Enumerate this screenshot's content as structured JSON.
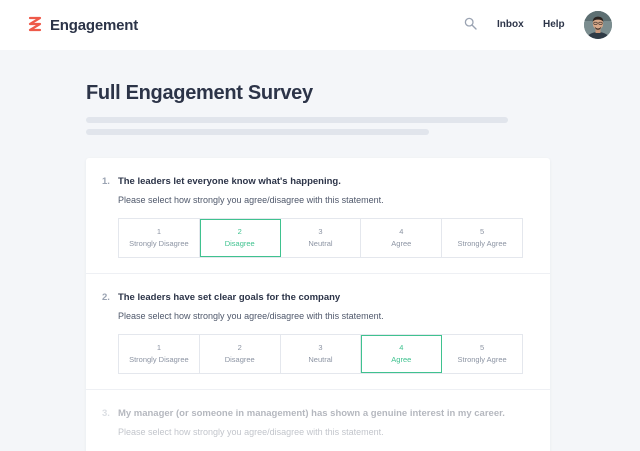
{
  "header": {
    "brand_name": "Engagement",
    "nav": [
      "Inbox",
      "Help"
    ],
    "colors": {
      "brand": "#ee5a4a",
      "selected": "#3fc28f"
    }
  },
  "main": {
    "title": "Full Engagement Survey"
  },
  "scale_labels": [
    "Strongly Disagree",
    "Disagree",
    "Neutral",
    "Agree",
    "Strongly Agree"
  ],
  "scale_numbers": [
    "1",
    "2",
    "3",
    "4",
    "5"
  ],
  "questions": [
    {
      "number": "1.",
      "text": "The leaders let everyone know what's happening.",
      "instruction": "Please select how strongly you agree/disagree with this statement.",
      "selected": 2
    },
    {
      "number": "2.",
      "text": "The leaders have set clear goals for the company",
      "instruction": "Please select how strongly you agree/disagree with this statement.",
      "selected": 4
    },
    {
      "number": "3.",
      "text": "My manager (or someone in management) has shown a genuine interest in my career.",
      "instruction": "Please select how strongly you agree/disagree with this statement."
    }
  ]
}
